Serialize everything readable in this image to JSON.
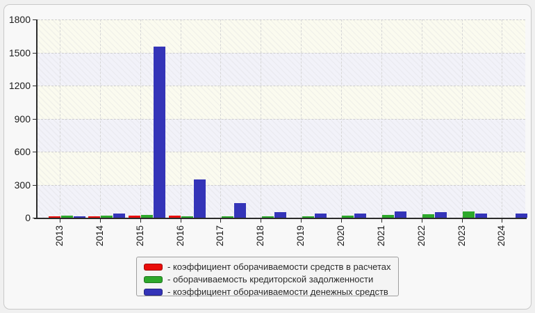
{
  "chart_data": {
    "type": "bar",
    "title": "",
    "xlabel": "",
    "ylabel": "",
    "categories": [
      "2013",
      "2014",
      "2015",
      "2016",
      "2017",
      "2018",
      "2019",
      "2020",
      "2021",
      "2022",
      "2023",
      "2024"
    ],
    "series": [
      {
        "name": "коэффициент оборачиваемости средств в расчетах",
        "color": "#e90d0a",
        "values": [
          12,
          12,
          20,
          22,
          0,
          0,
          0,
          0,
          0,
          0,
          0,
          0
        ]
      },
      {
        "name": "оборачиваемость кредиторской задолженности",
        "color": "#2da82b",
        "values": [
          18,
          18,
          28,
          15,
          12,
          15,
          15,
          20,
          28,
          30,
          58,
          0
        ]
      },
      {
        "name": "коэффициент оборачиваемости денежных средств",
        "color": "#3434b8",
        "values": [
          14,
          38,
          1555,
          350,
          133,
          48,
          36,
          38,
          60,
          52,
          35,
          36
        ]
      }
    ],
    "ylim": [
      0,
      1800
    ],
    "yticks": [
      0,
      300,
      600,
      900,
      1200,
      1500,
      1800
    ],
    "grid": "dashed horizontal and vertical gridlines",
    "plot_band_colors": [
      "#fbfbef",
      "#f2f2f9"
    ],
    "legend_position": "bottom-center"
  },
  "legend": {
    "items": [
      {
        "label": "- коэффициент оборачиваемости средств в расчетах",
        "color": "#e90d0a"
      },
      {
        "label": "- оборачиваемость кредиторской задолженности",
        "color": "#2da82b"
      },
      {
        "label": "- коэффициент оборачиваемости денежных средств",
        "color": "#3434b8"
      }
    ]
  }
}
